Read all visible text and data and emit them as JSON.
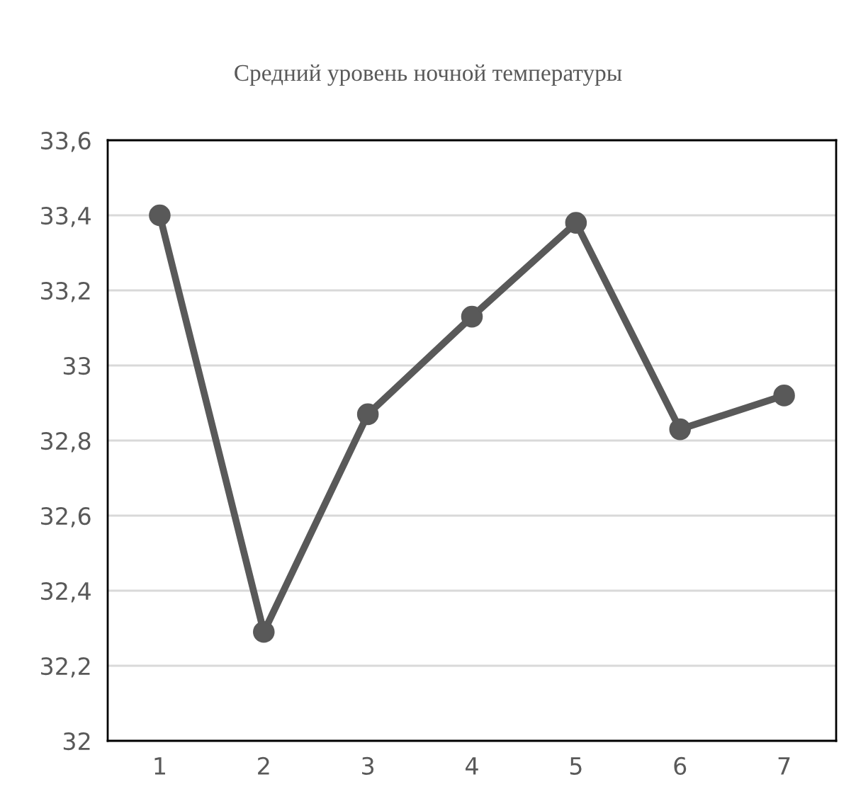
{
  "chart_data": {
    "type": "line",
    "title": "Средний уровень ночной температуры",
    "categories": [
      "1",
      "2",
      "3",
      "4",
      "5",
      "6",
      "7"
    ],
    "series": [
      {
        "color": "#595959",
        "values": [
          33.4,
          32.29,
          32.87,
          33.13,
          33.38,
          32.83,
          32.92
        ]
      }
    ],
    "ylim": [
      32,
      33.6
    ],
    "yticks": [
      {
        "value": 32,
        "label": "32"
      },
      {
        "value": 32.2,
        "label": "32,2"
      },
      {
        "value": 32.4,
        "label": "32,4"
      },
      {
        "value": 32.6,
        "label": "32,6"
      },
      {
        "value": 32.8,
        "label": "32,8"
      },
      {
        "value": 33,
        "label": "33"
      },
      {
        "value": 33.2,
        "label": "33,2"
      },
      {
        "value": 33.4,
        "label": "33,4"
      },
      {
        "value": 33.6,
        "label": "33,6"
      }
    ],
    "grid": "y",
    "marker": "circle",
    "line_style": "solid"
  }
}
